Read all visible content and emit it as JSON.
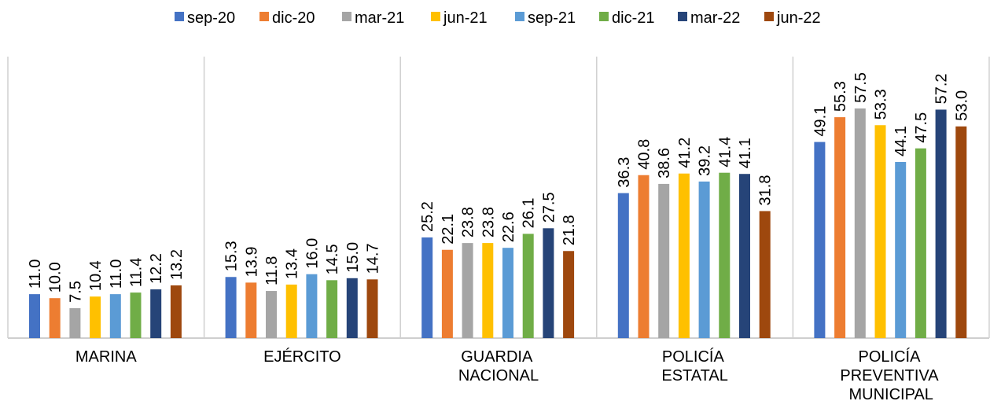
{
  "chart_data": {
    "type": "bar",
    "categories": [
      "MARINA",
      "EJÉRCITO",
      "GUARDIA NACIONAL",
      "POLICÍA ESTATAL",
      "POLICÍA PREVENTIVA MUNICIPAL"
    ],
    "series": [
      {
        "name": "sep-20",
        "color": "#4472c4",
        "values": [
          11.0,
          15.3,
          25.2,
          36.3,
          49.1
        ],
        "value_labels": [
          "11.0",
          "15.3",
          "25.2",
          "36.3",
          "49.1"
        ]
      },
      {
        "name": "dic-20",
        "color": "#ed7d31",
        "values": [
          10.0,
          13.9,
          22.1,
          40.8,
          55.3
        ],
        "value_labels": [
          "10.0",
          "13.9",
          "22.1",
          "40.8",
          "55.3"
        ]
      },
      {
        "name": "mar-21",
        "color": "#a5a5a5",
        "values": [
          7.5,
          11.8,
          23.8,
          38.6,
          57.5
        ],
        "value_labels": [
          "7.5",
          "11.8",
          "23.8",
          "38.6",
          "57.5"
        ]
      },
      {
        "name": "jun-21",
        "color": "#ffc000",
        "values": [
          10.4,
          13.4,
          23.8,
          41.2,
          53.3
        ],
        "value_labels": [
          "10.4",
          "13.4",
          "23.8",
          "41.2",
          "53.3"
        ]
      },
      {
        "name": "sep-21",
        "color": "#5b9bd5",
        "values": [
          11.0,
          16.0,
          22.6,
          39.2,
          44.1
        ],
        "value_labels": [
          "11.0",
          "16.0",
          "22.6",
          "39.2",
          "44.1"
        ]
      },
      {
        "name": "dic-21",
        "color": "#70ad47",
        "values": [
          11.4,
          14.5,
          26.1,
          41.4,
          47.5
        ],
        "value_labels": [
          "11.4",
          "14.5",
          "26.1",
          "41.4",
          "47.5"
        ]
      },
      {
        "name": "mar-22",
        "color": "#264478",
        "values": [
          12.2,
          15.0,
          27.5,
          41.1,
          57.2
        ],
        "value_labels": [
          "12.2",
          "15.0",
          "27.5",
          "41.1",
          "57.2"
        ]
      },
      {
        "name": "jun-22",
        "color": "#9e480e",
        "values": [
          13.2,
          14.7,
          21.8,
          31.8,
          53.0
        ],
        "value_labels": [
          "13.2",
          "14.7",
          "21.8",
          "31.8",
          "53.0"
        ]
      }
    ],
    "legend": "top"
  }
}
